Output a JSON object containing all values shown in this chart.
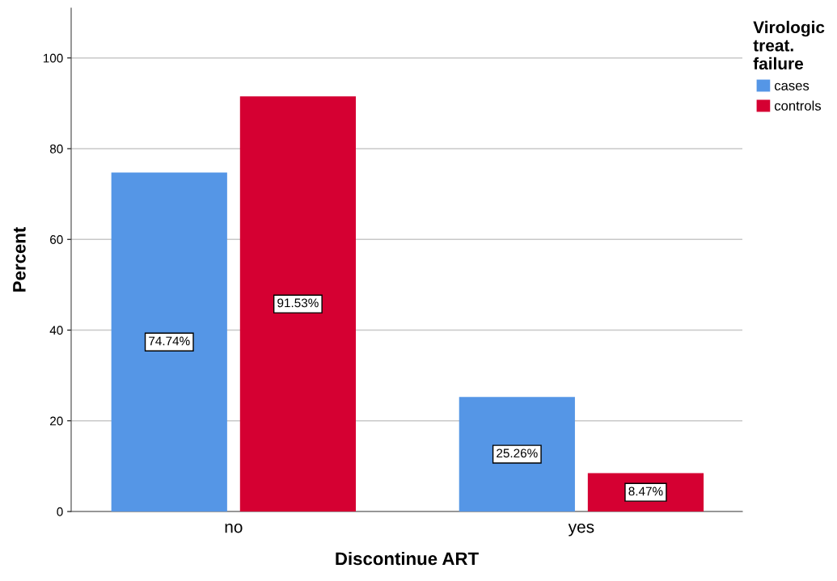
{
  "chart_data": {
    "type": "bar",
    "xlabel": "Discontinue ART",
    "ylabel": "Percent",
    "legend_title": "Virologic treat. failure",
    "categories": [
      "no",
      "yes"
    ],
    "series": [
      {
        "name": "cases",
        "color": "#5596e6",
        "values": [
          74.74,
          25.26
        ],
        "value_labels": [
          "74.74%",
          "25.26%"
        ]
      },
      {
        "name": "controls",
        "color": "#d50032",
        "values": [
          91.53,
          8.47
        ],
        "value_labels": [
          "91.53%",
          "8.47%"
        ]
      }
    ],
    "ylim": [
      0,
      111
    ],
    "yticks": [
      0,
      20,
      40,
      60,
      80,
      100
    ],
    "grid": "y",
    "legend": "top right"
  }
}
